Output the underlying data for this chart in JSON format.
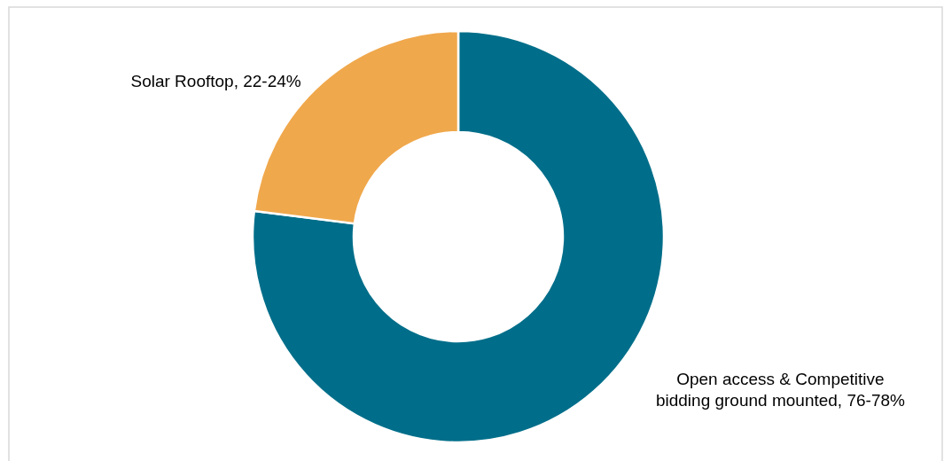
{
  "chart_data": {
    "type": "donut",
    "categories": [
      "Open access & Competitive bidding ground mounted, 76-78%",
      "Solar Rooftop, 22-24%"
    ],
    "values": [
      77,
      23
    ],
    "colors": [
      "#006e8a",
      "#f0a84c"
    ]
  }
}
